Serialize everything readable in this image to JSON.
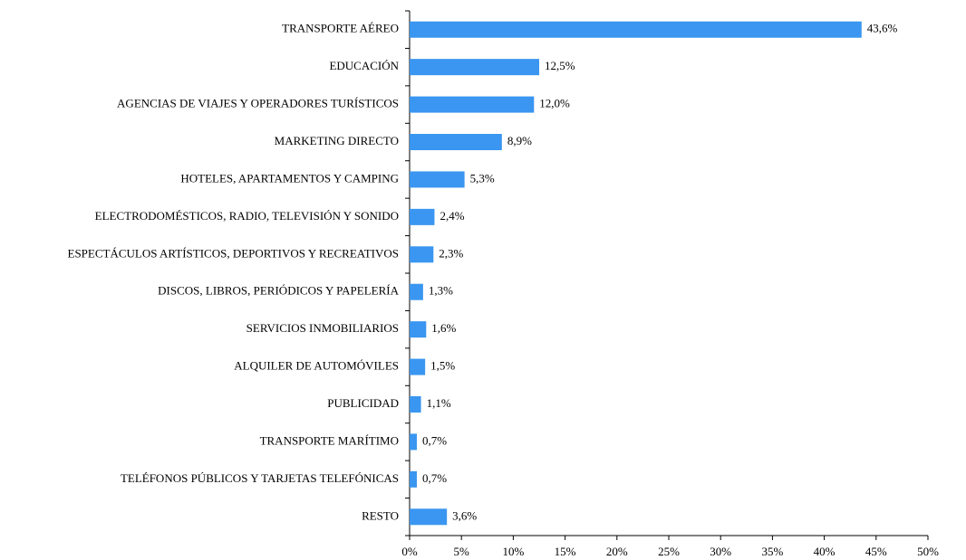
{
  "chart_data": {
    "type": "hbar",
    "categories": [
      "TRANSPORTE AÉREO",
      "EDUCACIÓN",
      "AGENCIAS DE VIAJES Y OPERADORES TURÍSTICOS",
      "MARKETING DIRECTO",
      "HOTELES, APARTAMENTOS Y CAMPING",
      "ELECTRODOMÉSTICOS, RADIO, TELEVISIÓN Y SONIDO",
      "ESPECTÁCULOS ARTÍSTICOS, DEPORTIVOS Y RECREATIVOS",
      "DISCOS, LIBROS, PERIÓDICOS Y PAPELERÍA",
      "SERVICIOS INMOBILIARIOS",
      "ALQUILER DE AUTOMÓVILES",
      "PUBLICIDAD",
      "TRANSPORTE MARÍTIMO",
      "TELÉFONOS PÚBLICOS Y TARJETAS TELEFÓNICAS",
      "RESTO"
    ],
    "values": [
      43.6,
      12.5,
      12.0,
      8.9,
      5.3,
      2.4,
      2.3,
      1.3,
      1.6,
      1.5,
      1.1,
      0.7,
      0.7,
      3.6
    ],
    "value_labels": [
      "43,6%",
      "12,5%",
      "12,0%",
      "8,9%",
      "5,3%",
      "2,4%",
      "2,3%",
      "1,3%",
      "1,6%",
      "1,5%",
      "1,1%",
      "0,7%",
      "0,7%",
      "3,6%"
    ],
    "color": "#3a96f0",
    "xlim": [
      0,
      50
    ],
    "xticks": [
      {
        "value": 0,
        "label": "0%"
      },
      {
        "value": 5,
        "label": "5%"
      },
      {
        "value": 10,
        "label": "10%"
      },
      {
        "value": 15,
        "label": "15%"
      },
      {
        "value": 20,
        "label": "20%"
      },
      {
        "value": 25,
        "label": "25%"
      },
      {
        "value": 30,
        "label": "30%"
      },
      {
        "value": 35,
        "label": "35%"
      },
      {
        "value": 40,
        "label": "40%"
      },
      {
        "value": 45,
        "label": "45%"
      },
      {
        "value": 50,
        "label": "50%"
      }
    ]
  }
}
